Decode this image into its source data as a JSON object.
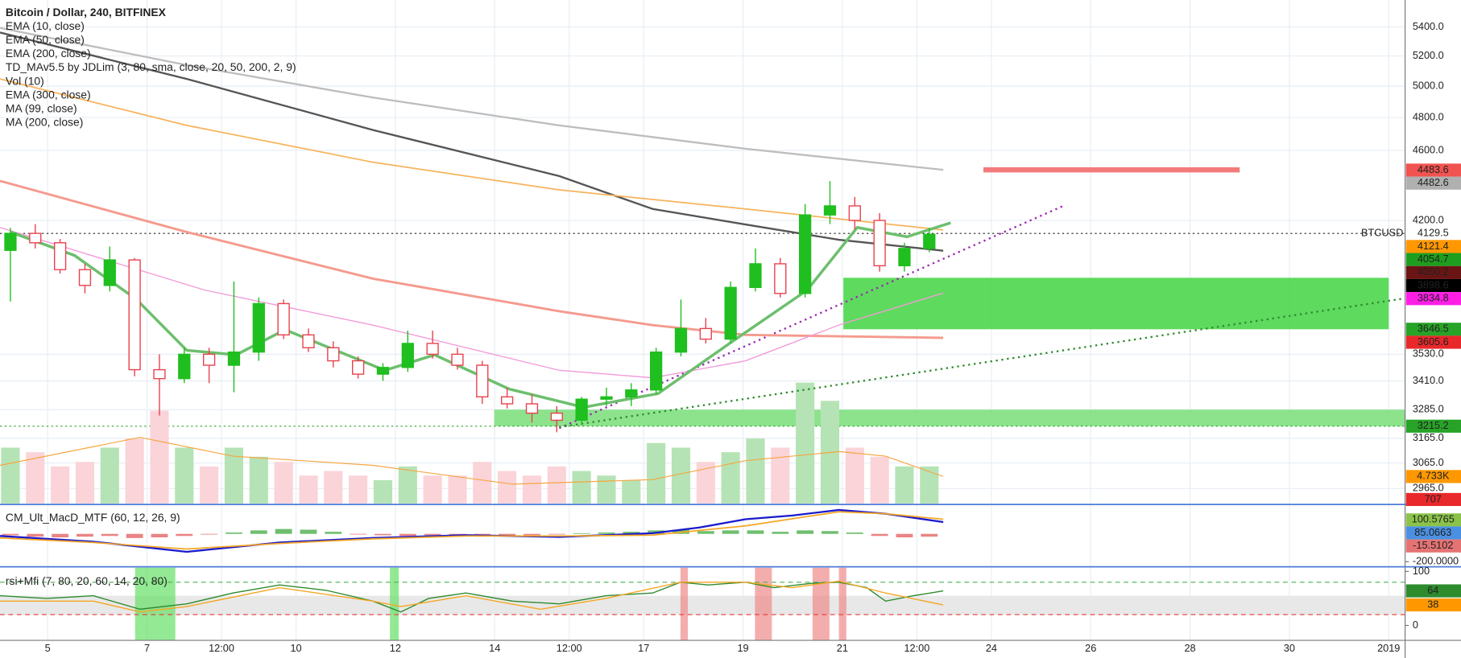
{
  "chart_data": [
    {
      "type": "candlestick",
      "title": "Bitcoin / Dollar, 240, BITFINEX",
      "legend": [
        "EMA (10, close)",
        "EMA (50, close)",
        "EMA (200, close)",
        "TD_MAv5.5 by JDLim (3, 80, sma, close, 20, 50, 200, 2, 9)",
        "Vol (10)",
        "EMA (300, close)",
        "MA (99, close)",
        "MA (200, close)"
      ],
      "symbol": "BTCUSD",
      "log_scale": true,
      "grid": true,
      "xlim": [
        4.04,
        32.33
      ],
      "xticks": [
        5,
        7,
        {
          "value": 8.5,
          "label": "12:00"
        },
        10,
        12,
        14,
        {
          "value": 15.5,
          "label": "12:00"
        },
        17,
        19,
        21,
        {
          "value": 22.5,
          "label": "12:00"
        },
        24,
        26,
        28,
        30,
        {
          "value": 32,
          "label": "2019"
        }
      ],
      "ylim": [
        2908,
        5592
      ],
      "yticks": [
        {
          "value": 5400,
          "label": "5400.0"
        },
        {
          "value": 5200,
          "label": "5200.0"
        },
        {
          "value": 5000,
          "label": "5000.0"
        },
        {
          "value": 4800,
          "label": "4800.0"
        },
        {
          "value": 4600,
          "label": "4600.0"
        },
        {
          "value": 4200,
          "label": "4200.0"
        },
        {
          "value": 3530,
          "label": "3530.0"
        },
        {
          "value": 3410,
          "label": "3410.0"
        },
        {
          "value": 3285,
          "label": "3285.0"
        },
        {
          "value": 3165,
          "label": "3165.0"
        },
        {
          "value": 3065,
          "label": "3065.0"
        },
        {
          "value": 2965,
          "label": "2965.0"
        }
      ],
      "up_color": "#1fbf1f",
      "down_color": "#e8414d",
      "x": [
        4.25,
        4.75,
        5.25,
        5.75,
        6.25,
        6.75,
        7.25,
        7.75,
        8.25,
        8.75,
        9.25,
        9.75,
        10.25,
        10.75,
        11.25,
        11.75,
        12.25,
        12.75,
        13.25,
        13.75,
        14.25,
        14.75,
        15.25,
        15.75,
        16.25,
        16.75,
        17.25,
        17.75,
        18.25,
        18.75,
        19.25,
        19.75,
        20.25,
        20.75,
        21.25,
        21.75,
        22.25,
        22.75
      ],
      "open": [
        4040,
        4130,
        4080,
        3940,
        3860,
        3990,
        3460,
        3420,
        3530,
        3480,
        3540,
        3770,
        3620,
        3560,
        3500,
        3440,
        3470,
        3580,
        3530,
        3480,
        3340,
        3310,
        3270,
        3240,
        3330,
        3340,
        3370,
        3540,
        3650,
        3600,
        3850,
        3970,
        3820,
        4230,
        4280,
        4200,
        3960,
        4050
      ],
      "high": [
        4160,
        4180,
        4100,
        3970,
        4060,
        4000,
        3530,
        3560,
        3560,
        3880,
        3800,
        3790,
        3650,
        3590,
        3520,
        3490,
        3640,
        3640,
        3560,
        3500,
        3380,
        3350,
        3300,
        3340,
        3380,
        3400,
        3560,
        3790,
        3700,
        3880,
        4050,
        4000,
        4290,
        4420,
        4330,
        4240,
        4080,
        4160
      ],
      "low": [
        3780,
        4050,
        3920,
        3820,
        3830,
        3430,
        3260,
        3400,
        3400,
        3360,
        3500,
        3600,
        3540,
        3470,
        3420,
        3410,
        3450,
        3510,
        3460,
        3310,
        3290,
        3230,
        3190,
        3220,
        3300,
        3300,
        3350,
        3520,
        3580,
        3580,
        3830,
        3800,
        3800,
        4180,
        4150,
        3930,
        3930,
        4030
      ],
      "close": [
        4130,
        4080,
        3940,
        3860,
        3990,
        3460,
        3420,
        3530,
        3480,
        3540,
        3770,
        3620,
        3560,
        3500,
        3440,
        3470,
        3580,
        3530,
        3480,
        3340,
        3310,
        3270,
        3240,
        3330,
        3340,
        3370,
        3540,
        3650,
        3600,
        3850,
        3970,
        3820,
        4230,
        4280,
        4200,
        3960,
        4050,
        4125
      ],
      "series": [
        {
          "color": "#bdbdbd",
          "width": 2,
          "x": [
            4.04,
            7.8,
            11.55,
            15.3,
            19.05,
            23.03
          ],
          "values": [
            5393,
            5139,
            4927,
            4752,
            4610,
            4485
          ]
        },
        {
          "color": "#555555",
          "width": 2,
          "x": [
            4.04,
            7.8,
            11.55,
            15.3,
            17.18,
            19.05,
            20.93,
            23.03
          ],
          "values": [
            5361,
            5047,
            4723,
            4449,
            4263,
            4178,
            4096,
            4038
          ]
        },
        {
          "color": "#f7b35b",
          "width": 1.5,
          "x": [
            4.04,
            7.8,
            11.55,
            15.3,
            19.05,
            23.03
          ],
          "values": [
            5047,
            4752,
            4530,
            4370,
            4263,
            4148
          ]
        },
        {
          "color": "#f59a8e",
          "width": 2.5,
          "x": [
            4.04,
            7.8,
            11.55,
            15.3,
            17.18,
            19.05,
            23.03
          ],
          "values": [
            4421,
            4137,
            3894,
            3733,
            3666,
            3620,
            3606
          ]
        },
        {
          "color": "#f29bd9",
          "width": 1.2,
          "x": [
            4.04,
            8.17,
            11.55,
            15.3,
            17.18,
            19.05,
            20.93,
            23.03
          ],
          "values": [
            4162,
            3836,
            3666,
            3457,
            3424,
            3500,
            3666,
            3822
          ]
        },
        {
          "color": "#6dbf6d",
          "width": 3,
          "x": [
            4.25,
            5.54,
            6.78,
            7.8,
            8.79,
            9.78,
            10.8,
            11.79,
            12.79,
            14.29,
            15.79,
            17.29,
            18.79,
            20.29,
            21.3,
            22.3,
            23.18
          ],
          "values": [
            4137,
            4013,
            3792,
            3548,
            3527,
            3644,
            3548,
            3457,
            3527,
            3374,
            3295,
            3354,
            3590,
            3836,
            4162,
            4112,
            4187
          ]
        }
      ],
      "zones": [
        {
          "color": "#4cd64c",
          "x": [
            21.02,
            32.0
          ],
          "values": [
            3646.5,
            3898.6
          ]
        },
        {
          "color": "#7fe07f",
          "x": [
            13.99,
            32.33
          ],
          "values": [
            3215.2,
            3285
          ]
        },
        {
          "color": "#f26b6b",
          "x": [
            23.84,
            29.0
          ],
          "values": [
            4470,
            4500
          ]
        }
      ],
      "trend_lines": [
        {
          "color": "#9c27b0",
          "x": [
            15.3,
            25.49
          ],
          "values": [
            3207,
            4285
          ]
        },
        {
          "color": "#2e8b2e",
          "x": [
            15.3,
            32.33
          ],
          "values": [
            3211,
            3796
          ]
        }
      ],
      "price_tags": [
        {
          "value": 4483.6,
          "color": "#f05350"
        },
        {
          "value": 4482.6,
          "color": "#b0b0b0"
        },
        {
          "value": 4129.5,
          "color": "#222222",
          "boxed": false,
          "dotted": true
        },
        {
          "value": 4121.4,
          "color": "#ff9800"
        },
        {
          "value": 4054.7,
          "color": "#1e9e1e"
        },
        {
          "value": 4050.2,
          "color": "#6b1414"
        },
        {
          "value": 3898.6,
          "color": "#000000"
        },
        {
          "value": 3834.8,
          "color": "#ff1ee6"
        },
        {
          "value": 3646.5,
          "color": "#27a327"
        },
        {
          "value": 3605.6,
          "color": "#e8282b"
        },
        {
          "value": 3215.2,
          "color": "#27a327",
          "dotted": true
        }
      ]
    },
    {
      "type": "bar",
      "ylim": [
        0,
        88.3
      ],
      "up_color": "#b5e3b5",
      "down_color": "#fad4d8",
      "values": [
        9.8,
        9.0,
        6.5,
        7.3,
        9.8,
        11.4,
        16.3,
        9.8,
        6.5,
        9.8,
        8.2,
        7.3,
        4.9,
        5.7,
        4.9,
        4.1,
        6.5,
        4.9,
        4.9,
        7.3,
        5.7,
        4.9,
        6.5,
        5.7,
        4.9,
        4.1,
        10.6,
        9.8,
        7.3,
        9.0,
        11.4,
        9.8,
        21.2,
        18.0,
        9.8,
        8.2,
        6.5,
        6.5
      ],
      "series": [
        {
          "color": "#f7a540",
          "width": 1,
          "x": [
            4.04,
            6.86,
            8.73,
            11.55,
            14.36,
            17.18,
            19.05,
            20.93,
            21.87,
            23.03
          ],
          "values": [
            6.7,
            11.6,
            8.3,
            6.7,
            3.4,
            4.2,
            7.5,
            9.1,
            8.3,
            4.733
          ]
        }
      ],
      "price_tags": [
        {
          "value": 4.733,
          "label": "4.733K",
          "color": "#ff9800"
        },
        {
          "value": 0.707,
          "label": "707",
          "color": "#e8282b"
        }
      ]
    },
    {
      "type": "macd",
      "title": "CM_Ult_MacD_MTF (60, 12, 26, 9)",
      "ylim": [
        -230,
        205
      ],
      "yticks": [
        {
          "value": -200,
          "label": "-200.0000"
        }
      ],
      "hist_colors": [
        "#3ea83e",
        "#e35b5b"
      ],
      "histogram": [
        -10,
        -20,
        -25,
        -20,
        -15,
        -30,
        -25,
        -15,
        -5,
        10,
        25,
        35,
        30,
        15,
        -5,
        -10,
        -15,
        -10,
        -15,
        -20,
        -15,
        -10,
        -5,
        5,
        10,
        15,
        25,
        30,
        20,
        25,
        25,
        15,
        25,
        20,
        10,
        -15,
        -25,
        -20
      ],
      "series": [
        {
          "color": "#1a1acc",
          "width": 2,
          "x": [
            4.04,
            5.92,
            7.8,
            9.67,
            11.55,
            13.42,
            15.3,
            17.18,
            18.11,
            19.05,
            19.99,
            20.93,
            21.87,
            23.03
          ],
          "values": [
            -15,
            -56,
            -129,
            -62,
            -29,
            -9,
            -22,
            5,
            45,
            105,
            132,
            172,
            145,
            85
          ]
        },
        {
          "color": "#f5a623",
          "width": 1.5,
          "x": [
            4.04,
            5.92,
            7.8,
            9.67,
            11.55,
            13.42,
            15.3,
            17.18,
            19.05,
            20.93,
            21.87,
            23.03
          ],
          "values": [
            -29,
            -62,
            -109,
            -69,
            -36,
            -15,
            -15,
            -9,
            58,
            159,
            145,
            105
          ]
        }
      ],
      "price_tags": [
        {
          "value": 100.5765,
          "color": "#8bc34a"
        },
        {
          "value": 85.0663,
          "color": "#4a90e2"
        },
        {
          "value": -15.5102,
          "color": "#e57373"
        }
      ]
    },
    {
      "type": "line",
      "title": "rsi+Mfi (7, 80, 20, 60, 14, 20, 80)",
      "ylim": [
        -27.6,
        106.9
      ],
      "yticks": [
        100,
        0
      ],
      "band": [
        20,
        55
      ],
      "levels": [
        {
          "value": 80,
          "color": "#4caf50"
        },
        {
          "value": 20,
          "color": "#e53935"
        }
      ],
      "highlights": [
        {
          "color": "#66e066",
          "x": [
            6.76,
            7.57
          ]
        },
        {
          "color": "#66e066",
          "x": [
            11.89,
            12.07
          ]
        },
        {
          "color": "#f08a8a",
          "x": [
            17.74,
            17.89
          ]
        },
        {
          "color": "#f08a8a",
          "x": [
            19.24,
            19.58
          ]
        },
        {
          "color": "#f08a8a",
          "x": [
            20.4,
            20.74
          ]
        },
        {
          "color": "#f08a8a",
          "x": [
            20.93,
            21.08
          ]
        }
      ],
      "series": [
        {
          "color": "#2e8b2e",
          "width": 1.2,
          "x": [
            4.04,
            4.98,
            5.92,
            6.86,
            7.8,
            8.73,
            9.67,
            10.61,
            11.55,
            12.11,
            12.67,
            13.42,
            14.36,
            15.3,
            16.24,
            17.18,
            17.74,
            18.3,
            19.05,
            19.62,
            20.37,
            20.93,
            21.49,
            21.87,
            22.43,
            23.03
          ],
          "values": [
            55,
            50,
            55,
            30,
            40,
            60,
            75,
            65,
            45,
            25,
            50,
            60,
            45,
            40,
            55,
            60,
            80,
            75,
            80,
            70,
            78,
            80,
            70,
            45,
            55,
            64
          ]
        },
        {
          "color": "#f5a623",
          "width": 1.2,
          "x": [
            4.04,
            5.92,
            6.86,
            7.8,
            9.67,
            11.55,
            12.11,
            13.42,
            14.92,
            16.24,
            17.74,
            19.05,
            19.99,
            20.93,
            21.87,
            23.03
          ],
          "values": [
            45,
            45,
            25,
            35,
            70,
            45,
            35,
            55,
            30,
            50,
            80,
            80,
            70,
            82,
            60,
            38
          ]
        }
      ],
      "price_tags": [
        {
          "value": 64,
          "color": "#2e8b2e"
        },
        {
          "value": 38,
          "color": "#ff9800"
        }
      ]
    }
  ]
}
